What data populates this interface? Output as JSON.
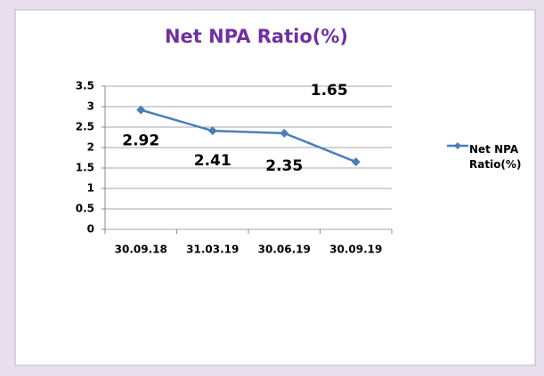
{
  "chart_data": {
    "type": "line",
    "title": "Net NPA Ratio(%)",
    "categories": [
      "30.09.18",
      "31.03.19",
      "30.06.19",
      "30.09.19"
    ],
    "series": [
      {
        "name": "Net NPA Ratio(%)",
        "color": "#4a7ebb",
        "values": [
          2.92,
          2.41,
          2.35,
          1.65
        ]
      }
    ],
    "ylim": [
      0,
      3.5
    ],
    "yticks": [
      0,
      0.5,
      1,
      1.5,
      2,
      2.5,
      3,
      3.5
    ],
    "grid": true,
    "legend": "right"
  }
}
